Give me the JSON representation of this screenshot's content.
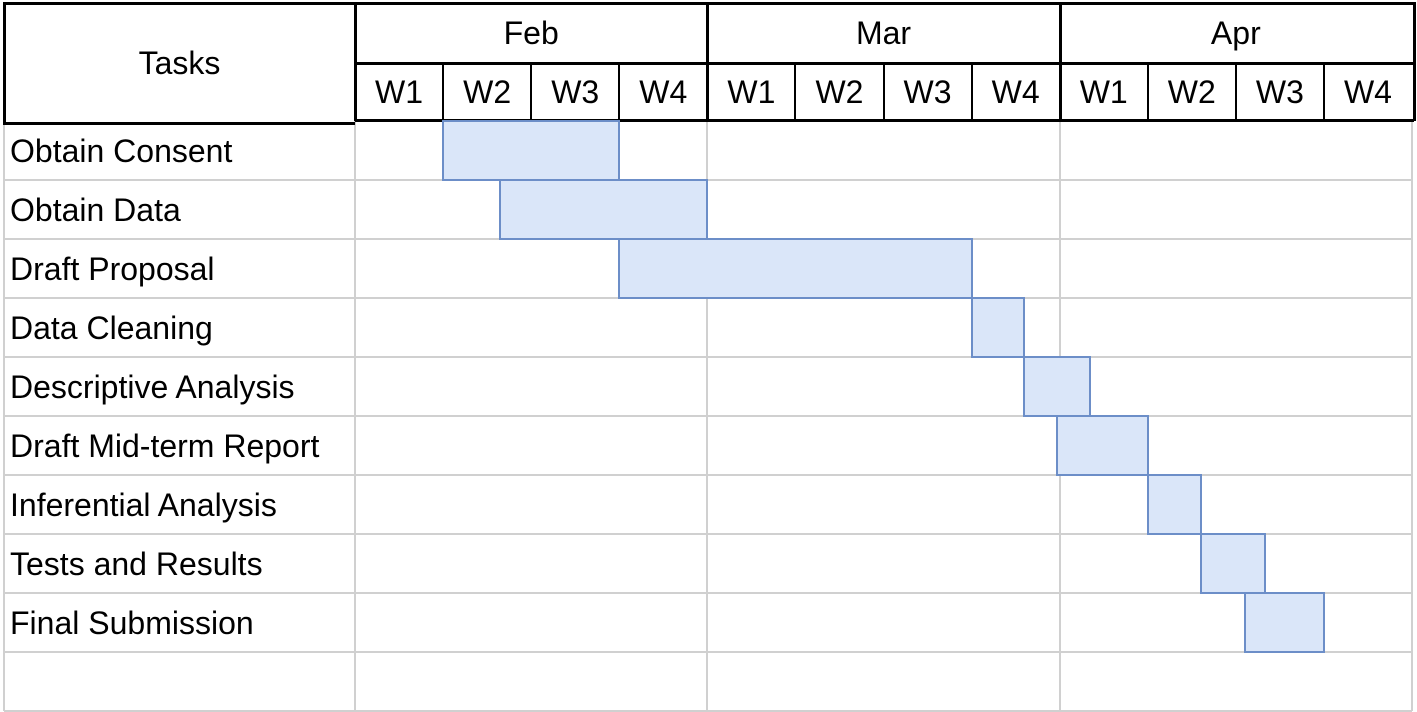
{
  "chart_data": {
    "type": "gantt",
    "header_label": "Tasks",
    "months": [
      {
        "label": "Feb",
        "weeks": [
          "W1",
          "W2",
          "W3",
          "W4"
        ]
      },
      {
        "label": "Mar",
        "weeks": [
          "W1",
          "W2",
          "W3",
          "W4"
        ]
      },
      {
        "label": "Apr",
        "weeks": [
          "W1",
          "W2",
          "W3",
          "W4"
        ]
      }
    ],
    "tasks": [
      {
        "label": "Obtain Consent",
        "start_week": 1.0,
        "end_week": 3.0
      },
      {
        "label": "Obtain Data",
        "start_week": 1.65,
        "end_week": 4.0
      },
      {
        "label": "Draft Proposal",
        "start_week": 3.0,
        "end_week": 7.0
      },
      {
        "label": "Data Cleaning",
        "start_week": 7.0,
        "end_week": 7.6
      },
      {
        "label": "Descriptive Analysis",
        "start_week": 7.6,
        "end_week": 8.35
      },
      {
        "label": "Draft Mid-term Report",
        "start_week": 7.97,
        "end_week": 9.0
      },
      {
        "label": "Inferential Analysis",
        "start_week": 9.0,
        "end_week": 9.6
      },
      {
        "label": "Tests and Results",
        "start_week": 9.6,
        "end_week": 10.33
      },
      {
        "label": "Final Submission",
        "start_week": 10.1,
        "end_week": 11.0
      }
    ],
    "extra_empty_rows": 1
  }
}
